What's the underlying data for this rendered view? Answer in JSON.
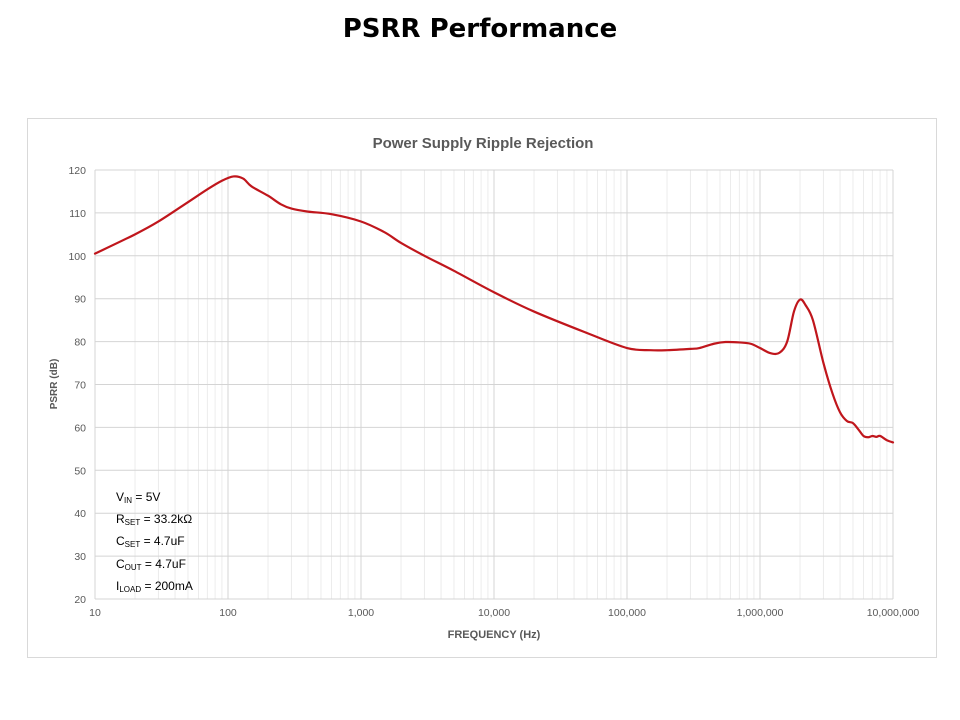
{
  "page": {
    "title": "PSRR Performance"
  },
  "chart_data": {
    "type": "line",
    "title": "Power Supply Ripple Rejection",
    "xlabel": "FREQUENCY (Hz)",
    "ylabel": "PSRR (dB)",
    "x_scale": "log",
    "xlim": [
      10,
      10000000
    ],
    "ylim": [
      20,
      120
    ],
    "grid": true,
    "x_ticks": [
      10,
      100,
      1000,
      10000,
      100000,
      1000000,
      10000000
    ],
    "x_tick_labels": [
      "10",
      "100",
      "1,000",
      "10,000",
      "100,000",
      "1,000,000",
      "10,000,000"
    ],
    "y_ticks": [
      20,
      30,
      40,
      50,
      60,
      70,
      80,
      90,
      100,
      110,
      120
    ],
    "y_tick_labels": [
      "20",
      "30",
      "40",
      "50",
      "60",
      "70",
      "80",
      "90",
      "100",
      "110",
      "120"
    ],
    "line_color": "#c0161c",
    "x": [
      10,
      20,
      30,
      50,
      70,
      90,
      110,
      130,
      150,
      200,
      250,
      300,
      400,
      600,
      1000,
      1500,
      2000,
      3000,
      5000,
      10000,
      20000,
      50000,
      100000,
      150000,
      200000,
      300000,
      350000,
      450000,
      550000,
      700000,
      850000,
      1000000,
      1200000,
      1400000,
      1600000,
      1800000,
      2000000,
      2200000,
      2500000,
      3000000,
      3500000,
      4000000,
      4500000,
      5000000,
      5500000,
      6000000,
      6500000,
      7000000,
      7500000,
      8000000,
      9000000,
      10000000
    ],
    "y": [
      100.5,
      105,
      108,
      112.5,
      115.5,
      117.5,
      118.5,
      118,
      116.2,
      114,
      112,
      111,
      110.3,
      109.7,
      108,
      105.5,
      103,
      100,
      96.5,
      91.5,
      87,
      82,
      78.5,
      78,
      78,
      78.3,
      78.5,
      79.5,
      79.9,
      79.8,
      79.5,
      78.5,
      77.3,
      77.4,
      80,
      87,
      89.8,
      88.5,
      85,
      75,
      68,
      63.5,
      61.5,
      61,
      59.5,
      58,
      57.7,
      58,
      57.8,
      58,
      57,
      56.5
    ],
    "annotations": [
      {
        "main": "V",
        "sub": "IN",
        "value": " = 5V"
      },
      {
        "main": "R",
        "sub": "SET",
        "value": " = 33.2kΩ"
      },
      {
        "main": "C",
        "sub": "SET",
        "value": " = 4.7uF"
      },
      {
        "main": "C",
        "sub": "OUT",
        "value": " = 4.7uF"
      },
      {
        "main": "I",
        "sub": "LOAD",
        "value": " = 200mA"
      }
    ]
  }
}
